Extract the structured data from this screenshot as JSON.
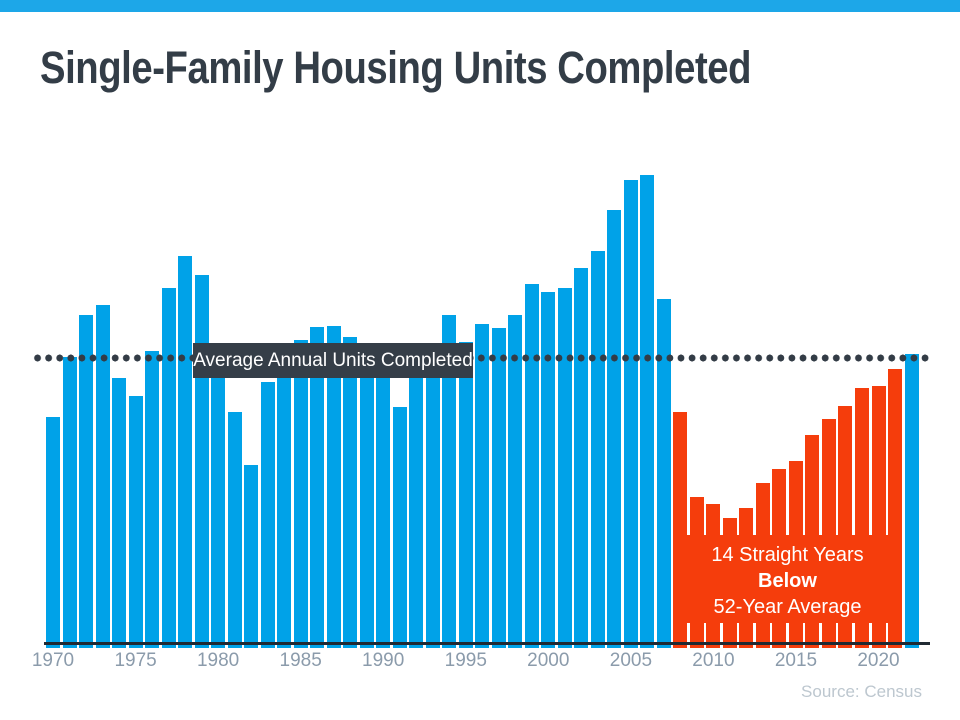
{
  "page": {
    "title": "Single-Family Housing Units Completed",
    "source_note": "Source: Census",
    "top_strip_color": "#1da7e8"
  },
  "annotations": {
    "average_line_label": "Average Annual Units Completed",
    "below_average_line1": "14 Straight Years",
    "below_average_line2": "Below",
    "below_average_line3": "52-Year Average"
  },
  "chart_data": {
    "type": "bar",
    "title": "Single-Family Housing Units Completed",
    "unit": "thousands of single-family housing units completed per year",
    "x": [
      1970,
      1971,
      1972,
      1973,
      1974,
      1975,
      1976,
      1977,
      1978,
      1979,
      1980,
      1981,
      1982,
      1983,
      1984,
      1985,
      1986,
      1987,
      1988,
      1989,
      1990,
      1991,
      1992,
      1993,
      1994,
      1995,
      1996,
      1997,
      1998,
      1999,
      2000,
      2001,
      2002,
      2003,
      2004,
      2005,
      2006,
      2007,
      2008,
      2009,
      2010,
      2011,
      2012,
      2013,
      2014,
      2015,
      2016,
      2017,
      2018,
      2019,
      2020,
      2021,
      2022
    ],
    "values": [
      802,
      1014,
      1160,
      1197,
      940,
      875,
      1034,
      1258,
      1369,
      1301,
      957,
      819,
      632,
      924,
      1025,
      1072,
      1120,
      1123,
      1085,
      1026,
      966,
      838,
      964,
      1039,
      1160,
      1066,
      1129,
      1116,
      1160,
      1270,
      1242,
      1256,
      1325,
      1386,
      1531,
      1636,
      1654,
      1218,
      819,
      520,
      496,
      447,
      483,
      569,
      620,
      648,
      738,
      795,
      840,
      903,
      912,
      970,
      1025
    ],
    "x_tick_labels": [
      1970,
      1975,
      1980,
      1985,
      1990,
      1995,
      2000,
      2005,
      2010,
      2015,
      2020
    ],
    "average_line": {
      "value": 1010,
      "label": "Average Annual Units Completed",
      "style": "dotted",
      "color": "#333c46"
    },
    "below_average_years": {
      "start": 2008,
      "end": 2021
    },
    "series_colors": {
      "above_average": "#00a2e8",
      "below_average": "#f53d0c"
    },
    "ylim": [
      0,
      1775
    ],
    "grid": false,
    "legend": false
  }
}
